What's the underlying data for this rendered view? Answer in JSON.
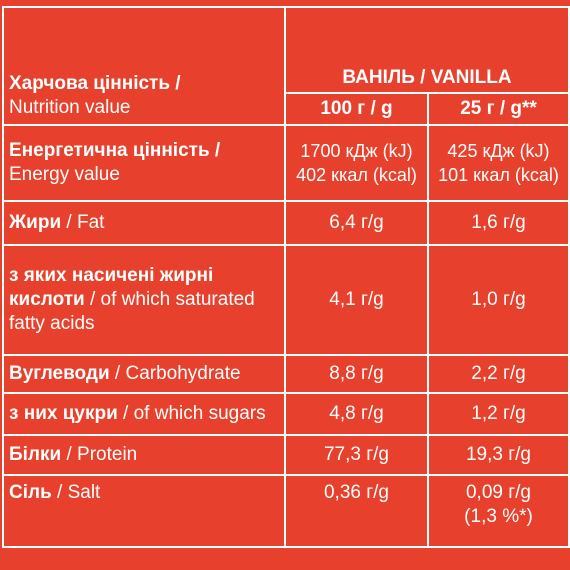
{
  "colors": {
    "background": "#e7402c",
    "text": "#ffffff",
    "grid": "#ffffff"
  },
  "header": {
    "title_uk": "Харчова цінність /",
    "title_en": "Nutrition value",
    "product": "ВАНІЛЬ / VANILLA",
    "col1": "100 г / g",
    "col2": "25 г / g**"
  },
  "rows": [
    {
      "label_uk": "Енергетична цінність /",
      "label_en": "Energy value",
      "v1a": "1700 кДж (kJ)",
      "v1b": "402 ккал (kcal)",
      "v2a": "425 кДж (kJ)",
      "v2b": "101 ккал (kcal)"
    },
    {
      "label_uk": "Жири",
      "label_en": " / Fat",
      "v1": "6,4 г/g",
      "v2": "1,6 г/g"
    },
    {
      "label_uk_1": "з яких насичені жирні",
      "label_uk_2": "кислоти",
      "label_en_1": " / of which saturated",
      "label_en_2": "fatty acids",
      "v1": "4,1 г/g",
      "v2": "1,0 г/g"
    },
    {
      "label_uk": "Вуглеводи",
      "label_en": " / Carbohydrate",
      "v1": "8,8 г/g",
      "v2": "2,2 г/g"
    },
    {
      "label_uk": "з них цукри",
      "label_en": " / of which sugars",
      "v1": "4,8 г/g",
      "v2": "1,2 г/g"
    },
    {
      "label_uk": "Білки",
      "label_en": " / Protein",
      "v1": "77,3 г/g",
      "v2": "19,3 г/g"
    },
    {
      "label_uk": "Сіль",
      "label_en": " / Salt",
      "v1": "0,36 г/g",
      "v2a": "0,09 г/g",
      "v2b": "(1,3 %*)"
    }
  ]
}
